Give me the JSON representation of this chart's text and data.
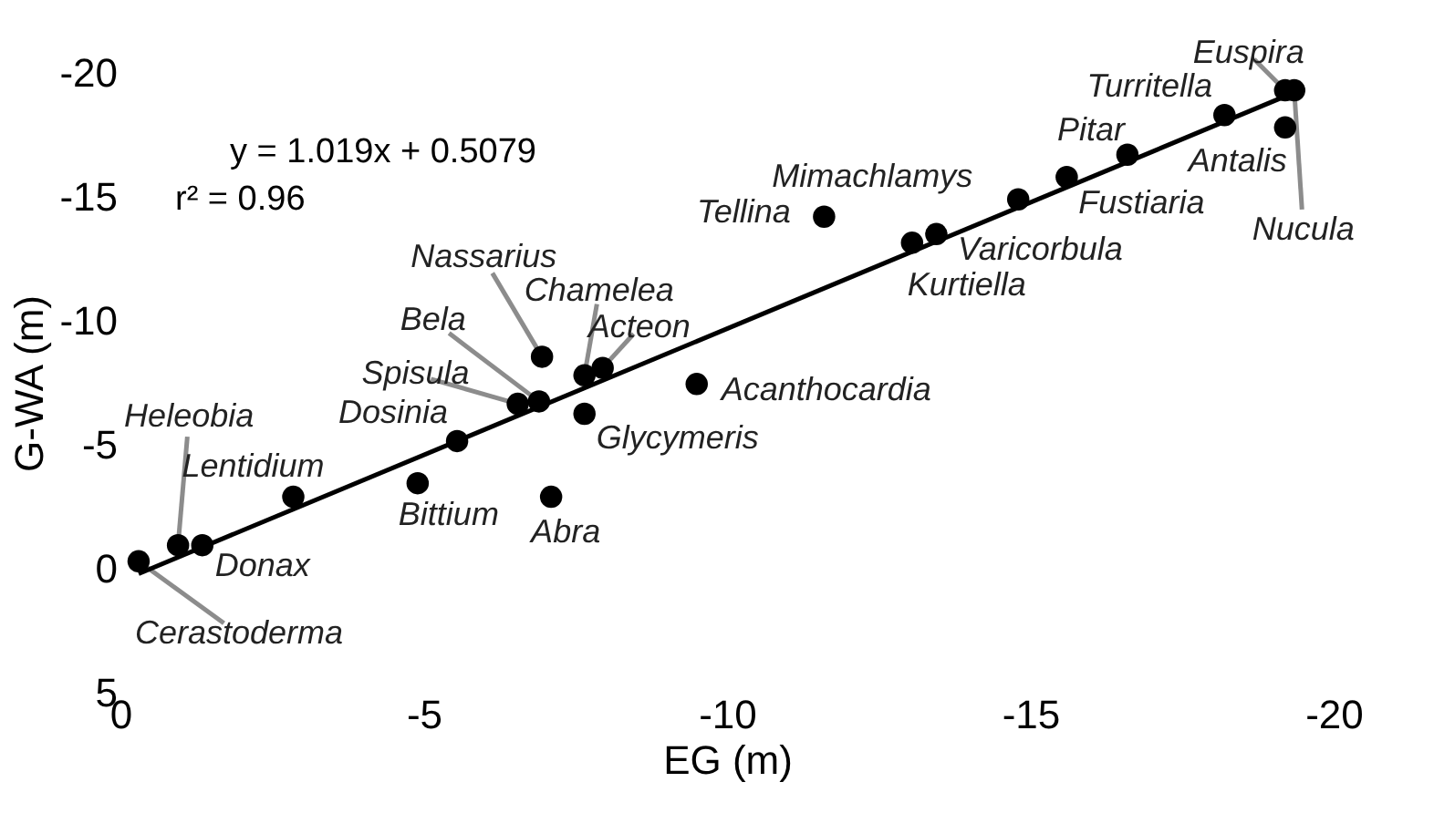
{
  "chart_data": {
    "type": "scatter",
    "xlabel": "EG (m)",
    "ylabel": "G-WA (m)",
    "xlim": [
      0,
      -20
    ],
    "ylim": [
      5,
      -20
    ],
    "xticks": [
      0,
      -5,
      -10,
      -15,
      -20
    ],
    "yticks": [
      5,
      0,
      -5,
      -10,
      -15,
      -20
    ],
    "grid": false,
    "series": [
      {
        "type": "scatter",
        "marker": "circle",
        "color": "#000000",
        "x": [
          -0.3,
          -0.95,
          -1.35,
          -2.85,
          -4.9,
          -5.55,
          -6.55,
          -6.9,
          -6.95,
          -7.1,
          -7.65,
          -7.95,
          -7.65,
          -9.5,
          -11.6,
          -13.05,
          -13.45,
          -14.8,
          -15.6,
          -16.6,
          -18.2,
          -19.2,
          -19.35,
          -19.2
        ],
        "values": [
          -0.3,
          -0.95,
          -0.95,
          -2.9,
          -3.45,
          -5.15,
          -6.65,
          -6.75,
          -8.55,
          -2.9,
          -7.8,
          -8.1,
          -6.25,
          -7.45,
          -14.2,
          -13.15,
          -13.5,
          -14.9,
          -15.8,
          -16.7,
          -18.3,
          -19.3,
          -19.3,
          -17.8
        ]
      },
      {
        "type": "line",
        "color": "#000000",
        "x": [
          -0.3,
          -19.5
        ],
        "values": [
          0.2,
          -19.36
        ]
      }
    ],
    "annotations": [
      "y = 1.019x + 0.5079",
      "r² = 0.96",
      {
        "text": "Cerastoderma",
        "x": -0.3,
        "y": -0.3
      },
      {
        "text": "Heleobia",
        "x": -0.95,
        "y": -0.95
      },
      {
        "text": "Donax",
        "x": -1.35,
        "y": -0.95
      },
      {
        "text": "Lentidium",
        "x": -2.85,
        "y": -2.9
      },
      {
        "text": "Bittium",
        "x": -4.9,
        "y": -3.45
      },
      {
        "text": "Dosinia",
        "x": -5.55,
        "y": -5.15
      },
      {
        "text": "Spisula",
        "x": -6.55,
        "y": -6.65
      },
      {
        "text": "Bela",
        "x": -6.9,
        "y": -6.75
      },
      {
        "text": "Nassarius",
        "x": -6.95,
        "y": -8.55
      },
      {
        "text": "Abra",
        "x": -7.1,
        "y": -2.9
      },
      {
        "text": "Chamelea",
        "x": -7.65,
        "y": -7.8
      },
      {
        "text": "Acteon",
        "x": -7.95,
        "y": -8.1
      },
      {
        "text": "Glycymeris",
        "x": -7.65,
        "y": -6.25
      },
      {
        "text": "Acanthocardia",
        "x": -9.5,
        "y": -7.45
      },
      {
        "text": "Tellina",
        "x": -11.6,
        "y": -14.2
      },
      {
        "text": "Kurtiella",
        "x": -13.05,
        "y": -13.15
      },
      {
        "text": "Varicorbula",
        "x": -13.45,
        "y": -13.5
      },
      {
        "text": "Mimachlamys",
        "x": -14.8,
        "y": -14.9
      },
      {
        "text": "Fustiaria",
        "x": -15.6,
        "y": -15.8
      },
      {
        "text": "Pitar",
        "x": -16.6,
        "y": -16.7
      },
      {
        "text": "Turritella",
        "x": -18.2,
        "y": -18.3
      },
      {
        "text": "Euspira",
        "x": -19.2,
        "y": -19.3
      },
      {
        "text": "Nucula",
        "x": -19.35,
        "y": -19.3
      },
      {
        "text": "Antalis",
        "x": -19.2,
        "y": -17.8
      }
    ]
  }
}
